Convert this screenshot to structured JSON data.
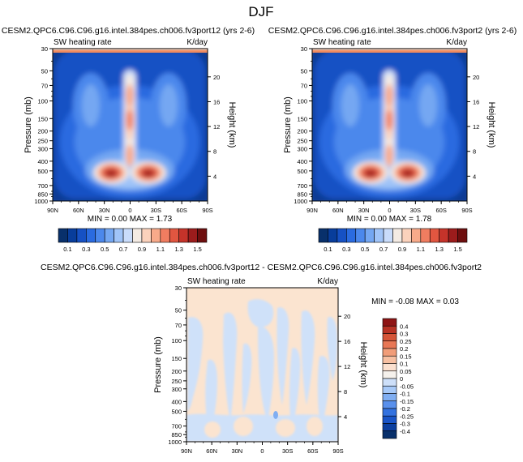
{
  "figure": {
    "title": "DJF"
  },
  "colors": {
    "scale": [
      "#08306b",
      "#083d9b",
      "#1651c4",
      "#2a6be0",
      "#4b88ec",
      "#74a7f2",
      "#a0c4f8",
      "#c9dcfb",
      "#f4ebe3",
      "#fbd2bc",
      "#f8aa8a",
      "#f07d60",
      "#e15640",
      "#c5332a",
      "#9c1c1c",
      "#6e0e0e"
    ],
    "diff_scale": [
      "#08306b",
      "#0c3fa0",
      "#1a55c8",
      "#3372e0",
      "#5990ec",
      "#80aef2",
      "#a7c9f8",
      "#cddff9",
      "#f5f1ec",
      "#fbe0cf",
      "#f7c0a2",
      "#f19d79",
      "#e87755",
      "#d55538",
      "#b83224",
      "#8e1414"
    ],
    "axis": "#000000",
    "pale_blue": "#cfe1f9",
    "pale_orange": "#fbe4d0"
  },
  "panels": [
    {
      "title": "CESM2.QPC6.C96.C96.g16.intel.384pes.ch006.fv3port12 (yrs 2-6)",
      "left_label": "SW heating rate",
      "right_label": "K/day",
      "min_max": "MIN =  0.00   MAX =  1.73",
      "y_label": "Pressure (mb)",
      "y2_label": "Height (km)"
    },
    {
      "title": "CESM2.QPC6.C96.C96.g16.intel.384pes.ch006.fv3port2 (yrs 2-6)",
      "left_label": "SW heating rate",
      "right_label": "K/day",
      "min_max": "MIN =  0.00   MAX =  1.78",
      "y_label": "Pressure (mb)",
      "y2_label": "Height (km)"
    },
    {
      "title": "CESM2.QPC6.C96.C96.g16.intel.384pes.ch006.fv3port12 - CESM2.QPC6.C96.C96.g16.intel.384pes.ch006.fv3port2",
      "left_label": "SW heating rate",
      "right_label": "K/day",
      "min_max": "MIN = -0.08   MAX =  0.03",
      "y_label": "Pressure (mb)",
      "y2_label": "Height (km)"
    }
  ],
  "axes": {
    "x_ticks": [
      "90N",
      "60N",
      "30N",
      "0",
      "30S",
      "60S",
      "90S"
    ],
    "p_ticks": [
      "30",
      "50",
      "70",
      "100",
      "150",
      "200",
      "250",
      "300",
      "400",
      "500",
      "700",
      "850",
      "1000"
    ],
    "z_ticks": [
      "20",
      "16",
      "12",
      "8",
      "4"
    ]
  },
  "colorbars": {
    "main_labels": [
      "0.1",
      "0.3",
      "0.5",
      "0.7",
      "0.9",
      "1.1",
      "1.3",
      "1.5"
    ],
    "diff_labels": [
      "0.4",
      "0.3",
      "0.25",
      "0.2",
      "0.15",
      "0.1",
      "0.05",
      "0",
      "-0.05",
      "-0.1",
      "-0.15",
      "-0.2",
      "-0.25",
      "-0.3",
      "-0.4"
    ]
  },
  "chart_data": [
    {
      "type": "heatmap",
      "title": "CESM2.QPC6.C96.C96.g16.intel.384pes.ch006.fv3port12 (yrs 2-6)",
      "variable": "SW heating rate",
      "units": "K/day",
      "x": [
        "90N",
        "60N",
        "30N",
        "0",
        "30S",
        "60S",
        "90S"
      ],
      "y": [
        30,
        50,
        70,
        100,
        150,
        200,
        250,
        300,
        400,
        500,
        700,
        850,
        1000
      ],
      "ylabel": "Pressure (mb)",
      "y2label": "Height (km)",
      "levels": [
        0.1,
        0.2,
        0.3,
        0.4,
        0.5,
        0.6,
        0.7,
        0.8,
        0.9,
        1.0,
        1.1,
        1.2,
        1.3,
        1.4,
        1.5
      ],
      "min": 0.0,
      "max": 1.73
    },
    {
      "type": "heatmap",
      "title": "CESM2.QPC6.C96.C96.g16.intel.384pes.ch006.fv3port2 (yrs 2-6)",
      "variable": "SW heating rate",
      "units": "K/day",
      "x": [
        "90N",
        "60N",
        "30N",
        "0",
        "30S",
        "60S",
        "90S"
      ],
      "y": [
        30,
        50,
        70,
        100,
        150,
        200,
        250,
        300,
        400,
        500,
        700,
        850,
        1000
      ],
      "ylabel": "Pressure (mb)",
      "y2label": "Height (km)",
      "levels": [
        0.1,
        0.2,
        0.3,
        0.4,
        0.5,
        0.6,
        0.7,
        0.8,
        0.9,
        1.0,
        1.1,
        1.2,
        1.3,
        1.4,
        1.5
      ],
      "min": 0.0,
      "max": 1.78
    },
    {
      "type": "heatmap",
      "title": "CESM2.QPC6.C96.C96.g16.intel.384pes.ch006.fv3port12 - CESM2.QPC6.C96.C96.g16.intel.384pes.ch006.fv3port2",
      "variable": "SW heating rate",
      "units": "K/day",
      "x": [
        "90N",
        "60N",
        "30N",
        "0",
        "30S",
        "60S",
        "90S"
      ],
      "y": [
        30,
        50,
        70,
        100,
        150,
        200,
        250,
        300,
        400,
        500,
        700,
        850,
        1000
      ],
      "ylabel": "Pressure (mb)",
      "y2label": "Height (km)",
      "levels": [
        -0.4,
        -0.3,
        -0.25,
        -0.2,
        -0.15,
        -0.1,
        -0.05,
        0,
        0.05,
        0.1,
        0.15,
        0.2,
        0.25,
        0.3,
        0.4
      ],
      "min": -0.08,
      "max": 0.03
    }
  ]
}
